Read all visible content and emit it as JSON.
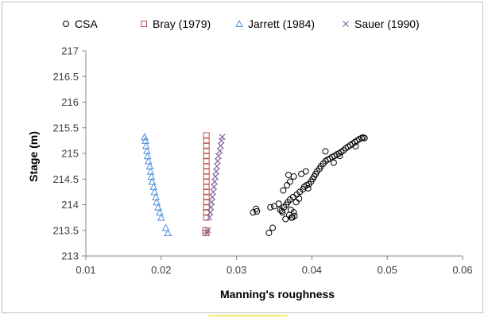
{
  "chart_data": {
    "type": "scatter",
    "title": "",
    "xlabel": "Manning's roughness",
    "ylabel": "Stage (m)",
    "xlim": [
      0.01,
      0.06
    ],
    "ylim": [
      213,
      217
    ],
    "xticks": [
      0.01,
      0.02,
      0.03,
      0.04,
      0.05,
      0.06
    ],
    "xtick_labels": [
      "0.01",
      "0.02",
      "0.03",
      "0.04",
      "0.05",
      "0.06"
    ],
    "yticks": [
      213,
      213.5,
      214,
      214.5,
      215,
      215.5,
      216,
      216.5,
      217
    ],
    "ytick_labels": [
      "213",
      "213.5",
      "214",
      "214.5",
      "215",
      "215.5",
      "216",
      "216.5",
      "217"
    ],
    "grid": false,
    "legend_position": "top",
    "series": [
      {
        "name": "CSA",
        "marker": "circle",
        "color": "#000000",
        "points": [
          [
            0.0343,
            213.45
          ],
          [
            0.0348,
            213.55
          ],
          [
            0.0322,
            213.85
          ],
          [
            0.0326,
            213.92
          ],
          [
            0.0327,
            213.87
          ],
          [
            0.0345,
            213.95
          ],
          [
            0.035,
            213.97
          ],
          [
            0.0356,
            214.02
          ],
          [
            0.0358,
            213.9
          ],
          [
            0.0361,
            213.85
          ],
          [
            0.0363,
            213.95
          ],
          [
            0.0366,
            214.0
          ],
          [
            0.0368,
            214.05
          ],
          [
            0.037,
            213.8
          ],
          [
            0.0372,
            213.9
          ],
          [
            0.0374,
            213.75
          ],
          [
            0.0376,
            213.85
          ],
          [
            0.0377,
            213.78
          ],
          [
            0.0373,
            213.75
          ],
          [
            0.0365,
            213.72
          ],
          [
            0.036,
            213.88
          ],
          [
            0.0371,
            214.1
          ],
          [
            0.0375,
            214.15
          ],
          [
            0.038,
            214.2
          ],
          [
            0.0384,
            214.25
          ],
          [
            0.0388,
            214.3
          ],
          [
            0.039,
            214.35
          ],
          [
            0.0393,
            214.38
          ],
          [
            0.0396,
            214.4
          ],
          [
            0.0399,
            214.45
          ],
          [
            0.0401,
            214.5
          ],
          [
            0.0403,
            214.55
          ],
          [
            0.0405,
            214.6
          ],
          [
            0.0407,
            214.65
          ],
          [
            0.041,
            214.7
          ],
          [
            0.0412,
            214.75
          ],
          [
            0.0415,
            214.8
          ],
          [
            0.0418,
            214.85
          ],
          [
            0.0421,
            214.88
          ],
          [
            0.0424,
            214.9
          ],
          [
            0.0427,
            214.93
          ],
          [
            0.043,
            214.95
          ],
          [
            0.0433,
            214.98
          ],
          [
            0.0436,
            215.0
          ],
          [
            0.0439,
            215.03
          ],
          [
            0.0442,
            215.06
          ],
          [
            0.0445,
            215.1
          ],
          [
            0.0448,
            215.13
          ],
          [
            0.0451,
            215.16
          ],
          [
            0.0454,
            215.19
          ],
          [
            0.0457,
            215.22
          ],
          [
            0.046,
            215.25
          ],
          [
            0.0463,
            215.28
          ],
          [
            0.0466,
            215.3
          ],
          [
            0.0468,
            215.31
          ],
          [
            0.047,
            215.3
          ],
          [
            0.0362,
            214.28
          ],
          [
            0.0367,
            214.38
          ],
          [
            0.0371,
            214.45
          ],
          [
            0.0369,
            214.58
          ],
          [
            0.0376,
            214.55
          ],
          [
            0.0386,
            214.6
          ],
          [
            0.0392,
            214.65
          ],
          [
            0.0418,
            215.04
          ],
          [
            0.0429,
            214.82
          ],
          [
            0.0458,
            215.14
          ],
          [
            0.0437,
            214.95
          ],
          [
            0.0395,
            214.32
          ],
          [
            0.0383,
            214.12
          ],
          [
            0.0379,
            214.05
          ]
        ]
      },
      {
        "name": "Bray (1979)",
        "marker": "square",
        "color": "#c0504d",
        "points": [
          [
            0.0259,
            213.45
          ],
          [
            0.0259,
            213.5
          ],
          [
            0.026,
            213.75
          ],
          [
            0.026,
            213.85
          ],
          [
            0.026,
            213.95
          ],
          [
            0.026,
            214.05
          ],
          [
            0.026,
            214.15
          ],
          [
            0.026,
            214.25
          ],
          [
            0.026,
            214.35
          ],
          [
            0.026,
            214.45
          ],
          [
            0.026,
            214.55
          ],
          [
            0.026,
            214.65
          ],
          [
            0.026,
            214.75
          ],
          [
            0.026,
            214.85
          ],
          [
            0.026,
            214.95
          ],
          [
            0.026,
            215.05
          ],
          [
            0.026,
            215.15
          ],
          [
            0.026,
            215.25
          ],
          [
            0.026,
            215.35
          ]
        ]
      },
      {
        "name": "Jarrett (1984)",
        "marker": "triangle",
        "color": "#4a90d9",
        "points": [
          [
            0.0209,
            213.45
          ],
          [
            0.0206,
            213.55
          ],
          [
            0.02,
            213.75
          ],
          [
            0.0198,
            213.85
          ],
          [
            0.0196,
            213.95
          ],
          [
            0.0194,
            214.05
          ],
          [
            0.0193,
            214.15
          ],
          [
            0.0191,
            214.25
          ],
          [
            0.019,
            214.35
          ],
          [
            0.0188,
            214.45
          ],
          [
            0.0187,
            214.55
          ],
          [
            0.0186,
            214.65
          ],
          [
            0.0185,
            214.75
          ],
          [
            0.0183,
            214.85
          ],
          [
            0.0182,
            214.95
          ],
          [
            0.0181,
            215.05
          ],
          [
            0.018,
            215.15
          ],
          [
            0.0179,
            215.25
          ],
          [
            0.0178,
            215.32
          ]
        ]
      },
      {
        "name": "Sauer (1990)",
        "marker": "cross",
        "color": "#8064a2",
        "points": [
          [
            0.0261,
            213.45
          ],
          [
            0.0262,
            213.5
          ],
          [
            0.0264,
            213.75
          ],
          [
            0.0265,
            213.85
          ],
          [
            0.0266,
            213.95
          ],
          [
            0.0267,
            214.05
          ],
          [
            0.0268,
            214.15
          ],
          [
            0.0269,
            214.25
          ],
          [
            0.027,
            214.35
          ],
          [
            0.0271,
            214.45
          ],
          [
            0.0272,
            214.55
          ],
          [
            0.0273,
            214.65
          ],
          [
            0.0274,
            214.75
          ],
          [
            0.0275,
            214.85
          ],
          [
            0.0276,
            214.95
          ],
          [
            0.0278,
            215.05
          ],
          [
            0.0279,
            215.15
          ],
          [
            0.028,
            215.25
          ],
          [
            0.0281,
            215.32
          ]
        ]
      }
    ]
  }
}
